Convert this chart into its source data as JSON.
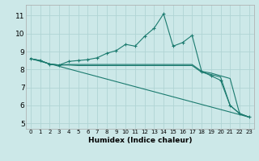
{
  "xlabel": "Humidex (Indice chaleur)",
  "xlim": [
    -0.5,
    23.5
  ],
  "ylim": [
    4.7,
    11.6
  ],
  "xtick_labels": [
    "0",
    "1",
    "2",
    "3",
    "4",
    "5",
    "6",
    "7",
    "8",
    "9",
    "10",
    "11",
    "12",
    "13",
    "14",
    "15",
    "16",
    "17",
    "18",
    "19",
    "20",
    "21",
    "22",
    "23"
  ],
  "ytick_vals": [
    5,
    6,
    7,
    8,
    9,
    10,
    11
  ],
  "bg_color": "#cce8e8",
  "line_color": "#1a7a6e",
  "grid_color": "#b0d4d4",
  "line1_x": [
    0,
    1,
    2,
    3,
    4,
    5,
    6,
    7,
    8,
    9,
    10,
    11,
    12,
    13,
    14,
    15,
    16,
    17,
    18,
    19,
    20,
    21,
    22,
    23
  ],
  "line1_y": [
    8.6,
    8.5,
    8.3,
    8.25,
    8.45,
    8.5,
    8.55,
    8.65,
    8.9,
    9.05,
    9.4,
    9.3,
    9.85,
    10.3,
    11.1,
    9.3,
    9.5,
    9.9,
    7.9,
    7.65,
    7.4,
    6.0,
    5.55,
    5.35
  ],
  "line2_x": [
    0,
    1,
    2,
    3,
    4,
    5,
    6,
    7,
    8,
    9,
    10,
    11,
    12,
    13,
    14,
    15,
    16,
    17,
    18,
    19,
    20,
    21,
    22,
    23
  ],
  "line2_y": [
    8.6,
    8.5,
    8.3,
    8.25,
    8.28,
    8.28,
    8.28,
    8.28,
    8.28,
    8.28,
    8.28,
    8.28,
    8.28,
    8.28,
    8.28,
    8.28,
    8.28,
    8.28,
    7.9,
    7.8,
    7.65,
    7.5,
    5.55,
    5.35
  ],
  "line3_x": [
    0,
    1,
    2,
    3,
    4,
    5,
    6,
    7,
    8,
    9,
    10,
    11,
    12,
    13,
    14,
    15,
    16,
    17,
    18,
    19,
    20,
    21,
    22,
    23
  ],
  "line3_y": [
    8.6,
    8.5,
    8.3,
    8.25,
    8.25,
    8.22,
    8.22,
    8.22,
    8.22,
    8.22,
    8.22,
    8.22,
    8.22,
    8.22,
    8.22,
    8.22,
    8.22,
    8.22,
    7.85,
    7.72,
    7.58,
    6.0,
    5.55,
    5.35
  ],
  "line4_x": [
    0,
    23
  ],
  "line4_y": [
    8.6,
    5.35
  ]
}
